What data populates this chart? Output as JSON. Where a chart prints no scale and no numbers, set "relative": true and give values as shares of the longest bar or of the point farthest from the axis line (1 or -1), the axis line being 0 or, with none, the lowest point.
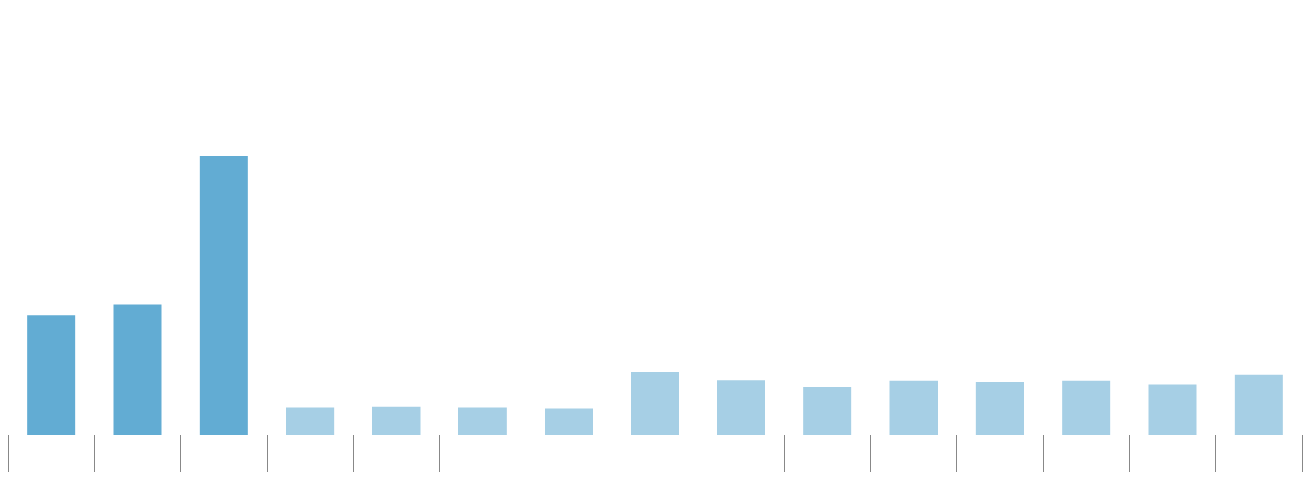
{
  "chart_data": {
    "type": "bar",
    "relative": true,
    "categories": [
      null,
      null,
      null,
      null,
      null,
      null,
      null,
      null,
      null,
      null,
      null,
      null,
      null,
      null,
      null
    ],
    "values": [
      0.43,
      0.469,
      1,
      0.098,
      0.1,
      0.098,
      0.095,
      0.226,
      0.195,
      0.17,
      0.193,
      0.19,
      0.193,
      0.18,
      0.216
    ],
    "colors": [
      "#62acd3",
      "#62acd3",
      "#62acd3",
      "#a6cfe5",
      "#a6cfe5",
      "#a6cfe5",
      "#a6cfe5",
      "#a6cfe5",
      "#a6cfe5",
      "#a6cfe5",
      "#a6cfe5",
      "#a6cfe5",
      "#a6cfe5",
      "#a6cfe5",
      "#a6cfe5"
    ],
    "data_labels": false
  }
}
